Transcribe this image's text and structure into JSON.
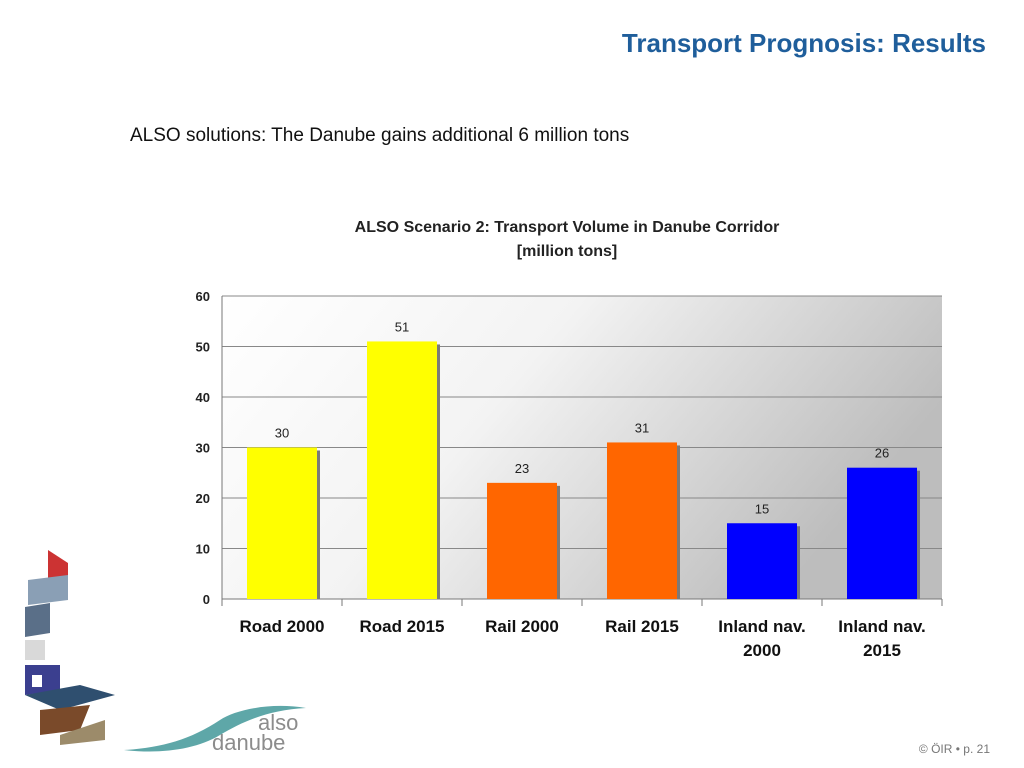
{
  "slide": {
    "title": "Transport Prognosis: Results",
    "subtitle": "ALSO solutions: The Danube gains additional 6 million tons",
    "footer": "© ÖIR • p. 21",
    "logo": {
      "line1": "also",
      "line2": "danube"
    }
  },
  "chart_data": {
    "type": "bar",
    "title": "ALSO Scenario 2: Transport Volume in Danube Corridor",
    "title_line2": "[million tons]",
    "categories": [
      "Road 2000",
      "Road 2015",
      "Rail 2000",
      "Rail 2015",
      "Inland nav. 2000",
      "Inland nav. 2015"
    ],
    "category_lines": [
      [
        "Road 2000"
      ],
      [
        "Road 2015"
      ],
      [
        "Rail 2000"
      ],
      [
        "Rail 2015"
      ],
      [
        "Inland nav.",
        "2000"
      ],
      [
        "Inland nav.",
        "2015"
      ]
    ],
    "values": [
      30,
      51,
      23,
      31,
      15,
      26
    ],
    "data_labels": [
      "30",
      "51",
      "23",
      "31",
      "15",
      "26"
    ],
    "bar_colors": [
      "#ffff00",
      "#ffff00",
      "#ff6600",
      "#ff6600",
      "#0000ff",
      "#0000ff"
    ],
    "xlabel": "",
    "ylabel": "",
    "ylim": [
      0,
      60
    ],
    "yticks": [
      0,
      10,
      20,
      30,
      40,
      50,
      60
    ],
    "grid": true,
    "legend": "none"
  }
}
